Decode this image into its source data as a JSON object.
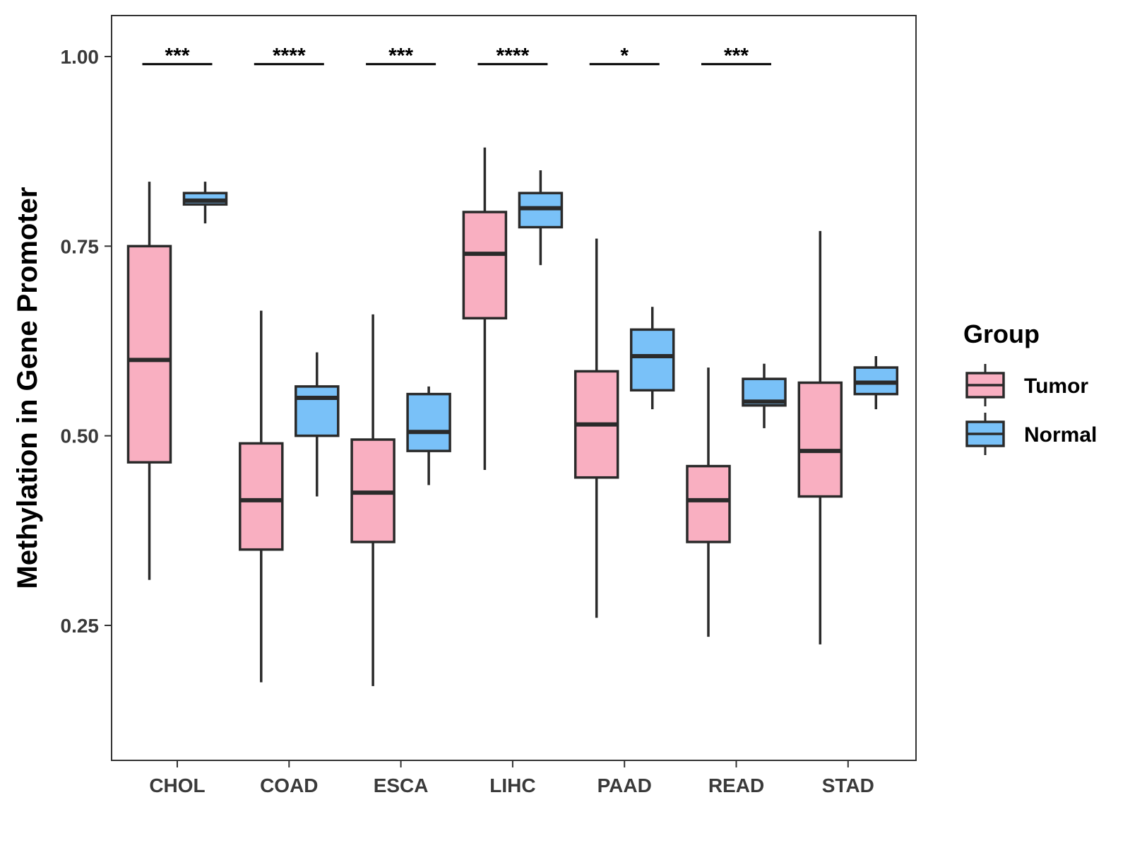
{
  "chart_data": {
    "type": "boxplot",
    "ylabel": "Methylation in Gene Promoter",
    "xlabel": "",
    "ylim": [
      0.1,
      1.05
    ],
    "yticks": [
      "0.25",
      "0.50",
      "0.75",
      "1.00"
    ],
    "yticks_values": [
      0.25,
      0.5,
      0.75,
      1.0
    ],
    "categories": [
      "CHOL",
      "COAD",
      "ESCA",
      "LIHC",
      "PAAD",
      "READ",
      "STAD"
    ],
    "legend": {
      "title": "Group",
      "position": "right"
    },
    "series": [
      {
        "name": "Tumor",
        "color": "#F9AFC1",
        "boxes": [
          {
            "min": 0.31,
            "q1": 0.465,
            "median": 0.6,
            "q3": 0.75,
            "max": 0.835
          },
          {
            "min": 0.175,
            "q1": 0.35,
            "median": 0.415,
            "q3": 0.49,
            "max": 0.665
          },
          {
            "min": 0.17,
            "q1": 0.36,
            "median": 0.425,
            "q3": 0.495,
            "max": 0.66
          },
          {
            "min": 0.455,
            "q1": 0.655,
            "median": 0.74,
            "q3": 0.795,
            "max": 0.88
          },
          {
            "min": 0.26,
            "q1": 0.445,
            "median": 0.515,
            "q3": 0.585,
            "max": 0.76
          },
          {
            "min": 0.235,
            "q1": 0.36,
            "median": 0.415,
            "q3": 0.46,
            "max": 0.59
          },
          {
            "min": 0.225,
            "q1": 0.42,
            "median": 0.48,
            "q3": 0.57,
            "max": 0.77
          }
        ]
      },
      {
        "name": "Normal",
        "color": "#79C1F8",
        "boxes": [
          {
            "min": 0.78,
            "q1": 0.805,
            "median": 0.81,
            "q3": 0.82,
            "max": 0.835
          },
          {
            "min": 0.42,
            "q1": 0.5,
            "median": 0.55,
            "q3": 0.565,
            "max": 0.61
          },
          {
            "min": 0.435,
            "q1": 0.48,
            "median": 0.505,
            "q3": 0.555,
            "max": 0.565
          },
          {
            "min": 0.725,
            "q1": 0.775,
            "median": 0.8,
            "q3": 0.82,
            "max": 0.85
          },
          {
            "min": 0.535,
            "q1": 0.56,
            "median": 0.605,
            "q3": 0.64,
            "max": 0.67
          },
          {
            "min": 0.51,
            "q1": 0.54,
            "median": 0.545,
            "q3": 0.575,
            "max": 0.595
          },
          {
            "min": 0.535,
            "q1": 0.555,
            "median": 0.57,
            "q3": 0.59,
            "max": 0.605
          }
        ]
      }
    ],
    "significance": [
      {
        "category": "CHOL",
        "label": "***"
      },
      {
        "category": "COAD",
        "label": "****"
      },
      {
        "category": "ESCA",
        "label": "***"
      },
      {
        "category": "LIHC",
        "label": "****"
      },
      {
        "category": "PAAD",
        "label": "*"
      },
      {
        "category": "READ",
        "label": "***"
      }
    ],
    "significance_y": 0.99
  }
}
